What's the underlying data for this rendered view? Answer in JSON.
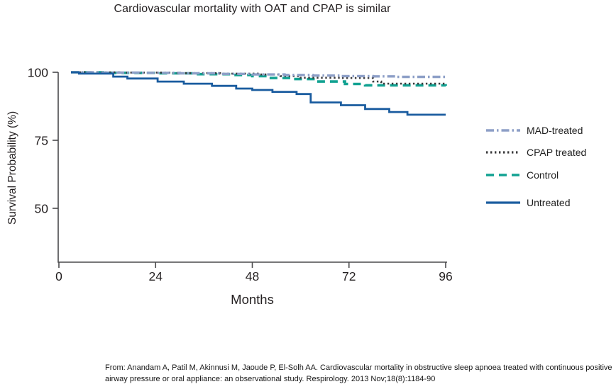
{
  "citation": "From: Anandam A, Patil M, Akinnusi M, Jaoude P, El-Solh AA. Cardiovascular mortality in obstructive sleep apnoea treated with continuous positive airway pressure or oral appliance: an observational study. Respirology. 2013 Nov;18(8):1184-90",
  "chart_data": {
    "type": "line",
    "subtype": "kaplan-meier-step",
    "title": "Cardiovascular mortality with OAT and CPAP is similar",
    "xlabel": "Months",
    "ylabel": "Survival Probability (%)",
    "xlim": [
      0,
      96
    ],
    "ylim": [
      30,
      100
    ],
    "xticks": [
      0,
      24,
      48,
      72,
      96
    ],
    "yticks": [
      100,
      75,
      50
    ],
    "grid": false,
    "legend_position": "right",
    "axis_color": "#4a4a4c",
    "series": [
      {
        "name": "MAD-treated",
        "color": "#8d9fc7",
        "dash": "11 4 2.5 4",
        "width": 3.4,
        "points": [
          [
            3,
            100
          ],
          [
            10,
            99.9
          ],
          [
            20,
            99.8
          ],
          [
            30,
            99.6
          ],
          [
            40,
            99.4
          ],
          [
            48,
            99.2
          ],
          [
            56,
            99.0
          ],
          [
            63,
            98.8
          ],
          [
            70,
            98.6
          ],
          [
            78,
            98.5
          ],
          [
            84,
            98.3
          ],
          [
            96,
            98.2
          ]
        ]
      },
      {
        "name": "CPAP treated",
        "color": "#3a3a3c",
        "dash": "2.4 3.6",
        "width": 2.6,
        "points": [
          [
            3,
            100
          ],
          [
            15,
            99.9
          ],
          [
            28,
            99.7
          ],
          [
            40,
            99.5
          ],
          [
            50,
            99.2
          ],
          [
            55,
            98.6
          ],
          [
            60,
            98.0
          ],
          [
            70,
            97.9
          ],
          [
            78,
            96.6
          ],
          [
            80,
            95.8
          ],
          [
            96,
            95.8
          ]
        ]
      },
      {
        "name": "Control",
        "color": "#12a292",
        "dash": "11 7",
        "width": 3.6,
        "points": [
          [
            3,
            100
          ],
          [
            12,
            99.8
          ],
          [
            24,
            99.6
          ],
          [
            34,
            99.3
          ],
          [
            43,
            99.0
          ],
          [
            48,
            98.6
          ],
          [
            52,
            97.9
          ],
          [
            58,
            97.5
          ],
          [
            64,
            96.6
          ],
          [
            71,
            95.7
          ],
          [
            76,
            95.2
          ],
          [
            96,
            95.0
          ]
        ]
      },
      {
        "name": "Untreated",
        "color": "#1a5c9f",
        "dash": "",
        "width": 2.8,
        "points": [
          [
            3,
            100
          ],
          [
            5,
            99.5
          ],
          [
            13.5,
            98.4
          ],
          [
            17,
            97.7
          ],
          [
            24.5,
            96.6
          ],
          [
            31,
            95.8
          ],
          [
            38,
            95.0
          ],
          [
            44,
            94.0
          ],
          [
            48,
            93.5
          ],
          [
            53,
            92.8
          ],
          [
            59,
            92.0
          ],
          [
            62.5,
            88.9
          ],
          [
            70,
            87.9
          ],
          [
            76,
            86.5
          ],
          [
            82,
            85.4
          ],
          [
            86.5,
            84.4
          ],
          [
            96,
            84.4
          ]
        ]
      }
    ]
  }
}
